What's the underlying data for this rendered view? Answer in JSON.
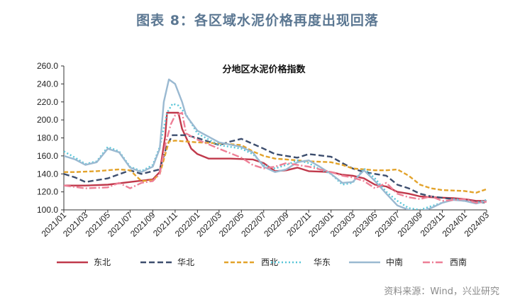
{
  "figure": {
    "title": "图表 8：各区域水泥价格再度出现回落",
    "source": "资料来源：Wind，兴业研究"
  },
  "chart_data": {
    "type": "line",
    "title": "分地区水泥价格指数",
    "xlabel": "",
    "ylabel": "",
    "ylim": [
      100,
      260
    ],
    "yticks": [
      "100.0",
      "120.0",
      "140.0",
      "160.0",
      "180.0",
      "200.0",
      "220.0",
      "240.0",
      "260.0"
    ],
    "x_range": [
      "2021-01",
      "2024-03"
    ],
    "xticks": [
      "2021/01",
      "2021/03",
      "2021/05",
      "2021/07",
      "2021/09",
      "2021/11",
      "2022/01",
      "2022/03",
      "2022/05",
      "2022/07",
      "2022/09",
      "2022/11",
      "2023/01",
      "2023/03",
      "2023/05",
      "2023/07",
      "2023/09",
      "2023/11",
      "2024/01",
      "2024/03"
    ],
    "legend_position": "bottom",
    "grid": false,
    "series": [
      {
        "name": "东北",
        "color": "#c0394b",
        "dash": "solid",
        "points": [
          [
            "2021-01",
            127
          ],
          [
            "2021-03",
            127
          ],
          [
            "2021-05",
            128
          ],
          [
            "2021-07",
            131
          ],
          [
            "2021-09",
            134
          ],
          [
            "2021-09-20",
            142
          ],
          [
            "2021-10-05",
            182
          ],
          [
            "2021-10-10",
            208
          ],
          [
            "2021-11-10",
            208
          ],
          [
            "2021-11-20",
            190
          ],
          [
            "2021-12-15",
            168
          ],
          [
            "2022-01",
            162
          ],
          [
            "2022-02",
            157
          ],
          [
            "2022-04",
            157
          ],
          [
            "2022-06",
            156
          ],
          [
            "2022-07",
            152
          ],
          [
            "2022-08",
            143
          ],
          [
            "2022-09",
            144
          ],
          [
            "2022-10",
            147
          ],
          [
            "2022-11",
            143
          ],
          [
            "2023-01",
            142
          ],
          [
            "2023-02",
            139
          ],
          [
            "2023-03",
            138
          ],
          [
            "2023-04",
            135
          ],
          [
            "2023-05",
            128
          ],
          [
            "2023-06",
            126
          ],
          [
            "2023-07",
            120
          ],
          [
            "2023-08",
            118
          ],
          [
            "2023-09",
            115
          ],
          [
            "2023-10",
            114
          ],
          [
            "2023-12",
            113
          ],
          [
            "2024-01",
            112
          ],
          [
            "2024-02",
            110
          ],
          [
            "2024-03",
            110
          ]
        ]
      },
      {
        "name": "华北",
        "color": "#3d4e6e",
        "dash": "8,4",
        "points": [
          [
            "2021-01",
            140
          ],
          [
            "2021-02",
            136
          ],
          [
            "2021-03",
            131
          ],
          [
            "2021-05",
            135
          ],
          [
            "2021-07",
            144
          ],
          [
            "2021-08",
            140
          ],
          [
            "2021-09",
            143
          ],
          [
            "2021-09-20",
            145
          ],
          [
            "2021-10-10",
            172
          ],
          [
            "2021-10-25",
            183
          ],
          [
            "2021-12",
            183
          ],
          [
            "2022-01",
            180
          ],
          [
            "2022-03",
            172
          ],
          [
            "2022-04",
            176
          ],
          [
            "2022-05",
            179
          ],
          [
            "2022-07",
            168
          ],
          [
            "2022-08",
            162
          ],
          [
            "2022-09",
            160
          ],
          [
            "2022-10",
            158
          ],
          [
            "2022-11",
            162
          ],
          [
            "2023-01",
            159
          ],
          [
            "2023-02",
            152
          ],
          [
            "2023-03",
            146
          ],
          [
            "2023-04",
            142
          ],
          [
            "2023-05",
            140
          ],
          [
            "2023-06",
            138
          ],
          [
            "2023-07",
            128
          ],
          [
            "2023-08",
            124
          ],
          [
            "2023-09",
            118
          ],
          [
            "2023-10",
            115
          ],
          [
            "2023-12",
            112
          ],
          [
            "2024-01",
            110
          ],
          [
            "2024-03",
            108
          ]
        ]
      },
      {
        "name": "西北",
        "color": "#e3a32b",
        "dash": "6,3",
        "points": [
          [
            "2021-01",
            142
          ],
          [
            "2021-02",
            142
          ],
          [
            "2021-04",
            143
          ],
          [
            "2021-06",
            145
          ],
          [
            "2021-07",
            144
          ],
          [
            "2021-08",
            132
          ],
          [
            "2021-09",
            133
          ],
          [
            "2021-09-20",
            140
          ],
          [
            "2021-10-15",
            176
          ],
          [
            "2021-11",
            177
          ],
          [
            "2021-12",
            176
          ],
          [
            "2022-01",
            175
          ],
          [
            "2022-03",
            174
          ],
          [
            "2022-05",
            172
          ],
          [
            "2022-06",
            165
          ],
          [
            "2022-07",
            160
          ],
          [
            "2022-08",
            157
          ],
          [
            "2022-09",
            156
          ],
          [
            "2022-11",
            154
          ],
          [
            "2023-01",
            153
          ],
          [
            "2023-02",
            150
          ],
          [
            "2023-03",
            146
          ],
          [
            "2023-05",
            144
          ],
          [
            "2023-06",
            144
          ],
          [
            "2023-07",
            145
          ],
          [
            "2023-08",
            138
          ],
          [
            "2023-09",
            128
          ],
          [
            "2023-10",
            124
          ],
          [
            "2023-11",
            122
          ],
          [
            "2024-01",
            121
          ],
          [
            "2024-02",
            119
          ],
          [
            "2024-03",
            123
          ]
        ]
      },
      {
        "name": "华东",
        "color": "#58c6d8",
        "dash": "2,3",
        "points": [
          [
            "2021-01",
            165
          ],
          [
            "2021-02",
            158
          ],
          [
            "2021-03",
            151
          ],
          [
            "2021-04",
            154
          ],
          [
            "2021-05",
            170
          ],
          [
            "2021-06",
            165
          ],
          [
            "2021-07",
            148
          ],
          [
            "2021-08",
            143
          ],
          [
            "2021-09",
            150
          ],
          [
            "2021-09-20",
            170
          ],
          [
            "2021-10-10",
            208
          ],
          [
            "2021-10-25",
            218
          ],
          [
            "2021-11-10",
            216
          ],
          [
            "2021-12",
            206
          ],
          [
            "2022-01",
            185
          ],
          [
            "2022-03",
            172
          ],
          [
            "2022-05",
            168
          ],
          [
            "2022-06",
            162
          ],
          [
            "2022-07",
            150
          ],
          [
            "2022-08",
            146
          ],
          [
            "2022-09",
            150
          ],
          [
            "2022-10",
            155
          ],
          [
            "2022-11",
            152
          ],
          [
            "2022-12",
            145
          ],
          [
            "2023-01",
            140
          ],
          [
            "2023-02",
            128
          ],
          [
            "2023-03",
            130
          ],
          [
            "2023-04",
            146
          ],
          [
            "2023-05",
            135
          ],
          [
            "2023-06",
            120
          ],
          [
            "2023-07",
            110
          ],
          [
            "2023-08",
            102
          ],
          [
            "2023-09",
            100
          ],
          [
            "2023-10",
            104
          ],
          [
            "2023-11",
            108
          ],
          [
            "2023-12",
            112
          ],
          [
            "2024-01",
            111
          ],
          [
            "2024-02",
            108
          ],
          [
            "2024-03",
            111
          ]
        ]
      },
      {
        "name": "中南",
        "color": "#9ab9d1",
        "dash": "solid",
        "points": [
          [
            "2021-01",
            160
          ],
          [
            "2021-02",
            156
          ],
          [
            "2021-03",
            150
          ],
          [
            "2021-04",
            153
          ],
          [
            "2021-05",
            168
          ],
          [
            "2021-06",
            164
          ],
          [
            "2021-07",
            147
          ],
          [
            "2021-08",
            142
          ],
          [
            "2021-09",
            148
          ],
          [
            "2021-09-20",
            168
          ],
          [
            "2021-10-01",
            220
          ],
          [
            "2021-10-15",
            245
          ],
          [
            "2021-11-01",
            240
          ],
          [
            "2021-11-20",
            220
          ],
          [
            "2021-12",
            205
          ],
          [
            "2022-01",
            188
          ],
          [
            "2022-03",
            175
          ],
          [
            "2022-05",
            170
          ],
          [
            "2022-06",
            164
          ],
          [
            "2022-07",
            148
          ],
          [
            "2022-08",
            142
          ],
          [
            "2022-09",
            145
          ],
          [
            "2022-10",
            153
          ],
          [
            "2022-11",
            155
          ],
          [
            "2022-12",
            148
          ],
          [
            "2023-01",
            140
          ],
          [
            "2023-02",
            130
          ],
          [
            "2023-03",
            131
          ],
          [
            "2023-04",
            144
          ],
          [
            "2023-05",
            132
          ],
          [
            "2023-06",
            118
          ],
          [
            "2023-07",
            105
          ],
          [
            "2023-08",
            100
          ],
          [
            "2023-09",
            98
          ],
          [
            "2023-10",
            102
          ],
          [
            "2023-11",
            108
          ],
          [
            "2023-12",
            111
          ],
          [
            "2024-01",
            110
          ],
          [
            "2024-02",
            107
          ],
          [
            "2024-03",
            110
          ]
        ]
      },
      {
        "name": "西南",
        "color": "#ee7f96",
        "dash": "10,3,2,3",
        "points": [
          [
            "2021-01",
            127
          ],
          [
            "2021-03",
            124
          ],
          [
            "2021-05",
            125
          ],
          [
            "2021-06",
            130
          ],
          [
            "2021-07",
            124
          ],
          [
            "2021-08",
            130
          ],
          [
            "2021-09",
            132
          ],
          [
            "2021-09-20",
            140
          ],
          [
            "2021-10-05",
            172
          ],
          [
            "2021-10-20",
            195
          ],
          [
            "2021-11",
            205
          ],
          [
            "2021-11-20",
            208
          ],
          [
            "2021-12",
            185
          ],
          [
            "2022-01",
            178
          ],
          [
            "2022-03",
            168
          ],
          [
            "2022-05",
            158
          ],
          [
            "2022-06",
            150
          ],
          [
            "2022-07",
            146
          ],
          [
            "2022-08",
            148
          ],
          [
            "2022-09",
            152
          ],
          [
            "2022-10",
            150
          ],
          [
            "2022-11",
            148
          ],
          [
            "2023-01",
            142
          ],
          [
            "2023-02",
            138
          ],
          [
            "2023-03",
            136
          ],
          [
            "2023-04",
            132
          ],
          [
            "2023-05",
            124
          ],
          [
            "2023-06",
            130
          ],
          [
            "2023-07",
            118
          ],
          [
            "2023-08",
            114
          ],
          [
            "2023-09",
            112
          ],
          [
            "2023-10",
            115
          ],
          [
            "2023-11",
            110
          ],
          [
            "2024-01",
            112
          ],
          [
            "2024-02",
            108
          ],
          [
            "2024-03",
            109
          ]
        ]
      }
    ]
  }
}
